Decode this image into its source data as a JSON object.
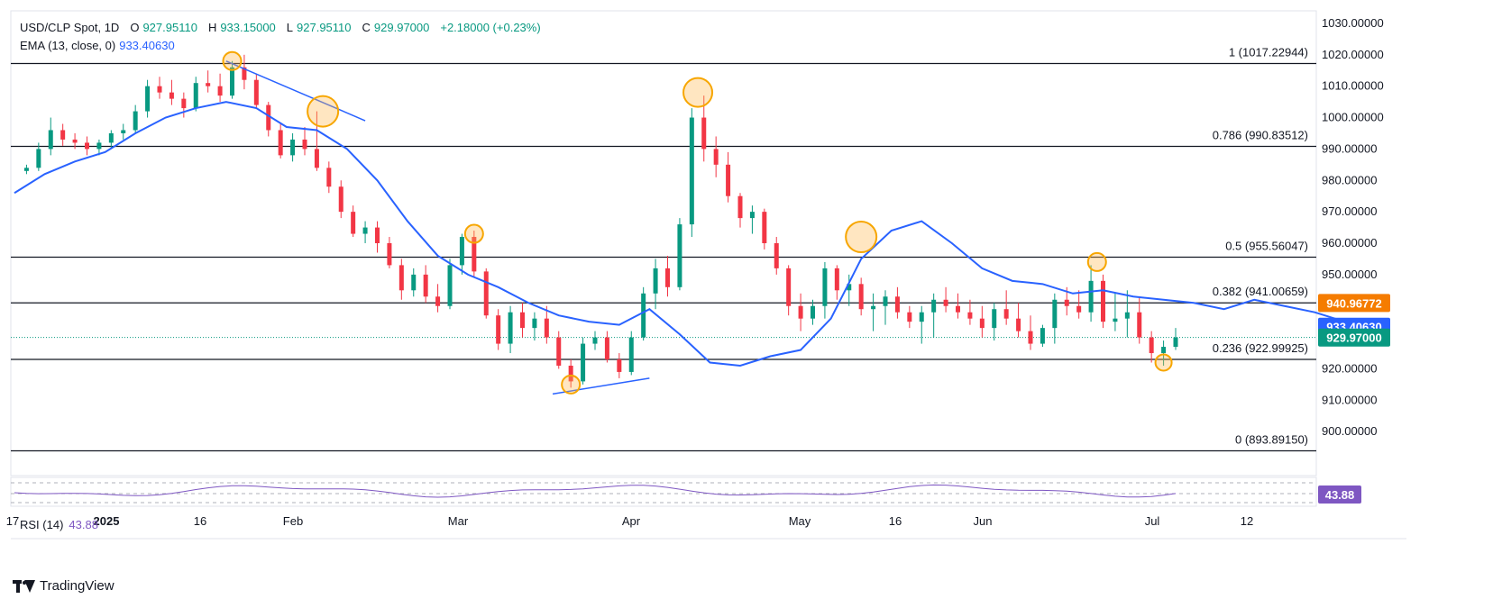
{
  "header": {
    "symbol": "USD/CLP Spot, 1D",
    "open_key": "O",
    "open": "927.95110",
    "high_key": "H",
    "high": "933.15000",
    "low_key": "L",
    "low": "927.95110",
    "close_key": "C",
    "close": "929.97000",
    "change": "+2.18000 (+0.23%)",
    "ema_label": "EMA (13, close, 0)",
    "ema_value": "933.40630"
  },
  "rsi": {
    "label": "RSI (14)",
    "value": "43.88"
  },
  "branding": {
    "name": "TradingView"
  },
  "colors": {
    "up": "#089981",
    "down": "#f23645",
    "ema": "#2962ff",
    "rsi": "#7e57c2",
    "highlight": "#f7a600"
  },
  "chart_data": {
    "type": "candlestick",
    "title": "USD/CLP Spot, 1D",
    "ylim": [
      886,
      1034
    ],
    "y_ticks": [
      "1030.00000",
      "1020.00000",
      "1010.00000",
      "1000.00000",
      "990.00000",
      "980.00000",
      "970.00000",
      "960.00000",
      "950.00000",
      "940.00000",
      "930.00000",
      "920.00000",
      "910.00000",
      "900.00000"
    ],
    "x_ticks": [
      "17",
      "2025",
      "16",
      "Feb",
      "Mar",
      "Apr",
      "May",
      "16",
      "Jun",
      "Jul",
      "12"
    ],
    "fib_levels": [
      {
        "label": "1 (1017.22944)",
        "value": 1017.22944
      },
      {
        "label": "0.786 (990.83512)",
        "value": 990.83512
      },
      {
        "label": "0.5 (955.56047)",
        "value": 955.56047
      },
      {
        "label": "0.382 (941.00659)",
        "value": 941.00659
      },
      {
        "label": "0.236 (922.99925)",
        "value": 922.99925
      },
      {
        "label": "0 (893.89150)",
        "value": 893.8915
      }
    ],
    "price_badges": [
      {
        "text": "940.96772",
        "value": 940.96772,
        "color": "#f57c00"
      },
      {
        "text": "933.40630",
        "value": 933.4063,
        "color": "#2962ff"
      },
      {
        "text": "929.97000",
        "value": 929.97,
        "color": "#089981"
      }
    ],
    "rsi_badge": "43.88",
    "series": [
      {
        "name": "EMA (13, close, 0)",
        "points": [
          [
            0,
            976
          ],
          [
            5,
            982
          ],
          [
            10,
            986
          ],
          [
            15,
            989
          ],
          [
            20,
            995
          ],
          [
            25,
            1000
          ],
          [
            30,
            1003
          ],
          [
            35,
            1005
          ],
          [
            40,
            1003
          ],
          [
            45,
            997
          ],
          [
            50,
            996
          ],
          [
            55,
            990
          ],
          [
            60,
            980
          ],
          [
            65,
            967
          ],
          [
            70,
            956
          ],
          [
            75,
            950
          ],
          [
            80,
            946
          ],
          [
            85,
            941
          ],
          [
            90,
            937
          ],
          [
            95,
            935
          ],
          [
            100,
            934
          ],
          [
            105,
            939
          ],
          [
            110,
            931
          ],
          [
            115,
            922
          ],
          [
            120,
            921
          ],
          [
            125,
            924
          ],
          [
            130,
            926
          ],
          [
            135,
            936
          ],
          [
            140,
            955
          ],
          [
            145,
            964
          ],
          [
            150,
            967
          ],
          [
            155,
            960
          ],
          [
            160,
            952
          ],
          [
            165,
            948
          ],
          [
            170,
            947
          ],
          [
            175,
            944
          ],
          [
            180,
            945
          ],
          [
            185,
            943
          ],
          [
            190,
            942
          ],
          [
            195,
            941
          ],
          [
            200,
            939
          ],
          [
            205,
            942
          ],
          [
            210,
            940
          ],
          [
            215,
            938
          ],
          [
            220,
            935
          ],
          [
            225,
            934
          ]
        ]
      }
    ],
    "candles": [
      [
        2,
        983,
        985,
        982,
        984
      ],
      [
        4,
        984,
        992,
        983,
        990
      ],
      [
        6,
        990,
        1000,
        988,
        996
      ],
      [
        8,
        996,
        998,
        991,
        993
      ],
      [
        10,
        993,
        995,
        990,
        992
      ],
      [
        12,
        992,
        994,
        988,
        990
      ],
      [
        14,
        990,
        993,
        988,
        992
      ],
      [
        16,
        992,
        996,
        990,
        995
      ],
      [
        18,
        995,
        998,
        993,
        996
      ],
      [
        20,
        996,
        1004,
        995,
        1002
      ],
      [
        22,
        1002,
        1012,
        1000,
        1010
      ],
      [
        24,
        1010,
        1013,
        1006,
        1008
      ],
      [
        26,
        1008,
        1012,
        1004,
        1006
      ],
      [
        28,
        1006,
        1008,
        1000,
        1003
      ],
      [
        30,
        1003,
        1013,
        1002,
        1011
      ],
      [
        32,
        1011,
        1015,
        1008,
        1010
      ],
      [
        34,
        1010,
        1014,
        1005,
        1007
      ],
      [
        36,
        1007,
        1018,
        1006,
        1016
      ],
      [
        38,
        1016,
        1020,
        1009,
        1012
      ],
      [
        40,
        1012,
        1014,
        1003,
        1004
      ],
      [
        42,
        1004,
        1005,
        994,
        996
      ],
      [
        44,
        996,
        998,
        987,
        988
      ],
      [
        46,
        988,
        995,
        986,
        993
      ],
      [
        48,
        993,
        997,
        988,
        990
      ],
      [
        50,
        990,
        1002,
        983,
        984
      ],
      [
        52,
        984,
        986,
        976,
        978
      ],
      [
        54,
        978,
        980,
        968,
        970
      ],
      [
        56,
        970,
        972,
        962,
        963
      ],
      [
        58,
        963,
        967,
        960,
        965
      ],
      [
        60,
        965,
        967,
        957,
        960
      ],
      [
        62,
        960,
        962,
        952,
        953
      ],
      [
        64,
        953,
        955,
        942,
        945
      ],
      [
        66,
        945,
        952,
        943,
        950
      ],
      [
        68,
        950,
        953,
        941,
        943
      ],
      [
        70,
        943,
        947,
        938,
        940
      ],
      [
        72,
        940,
        955,
        939,
        953
      ],
      [
        74,
        953,
        963,
        950,
        962
      ],
      [
        76,
        962,
        964,
        949,
        951
      ],
      [
        78,
        951,
        952,
        936,
        937
      ],
      [
        80,
        937,
        939,
        926,
        928
      ],
      [
        82,
        928,
        940,
        925,
        938
      ],
      [
        84,
        938,
        941,
        930,
        933
      ],
      [
        86,
        933,
        938,
        929,
        936
      ],
      [
        88,
        936,
        940,
        928,
        930
      ],
      [
        90,
        930,
        932,
        920,
        921
      ],
      [
        92,
        921,
        923,
        914,
        916
      ],
      [
        94,
        916,
        930,
        915,
        928
      ],
      [
        96,
        928,
        932,
        926,
        930
      ],
      [
        98,
        930,
        932,
        922,
        923
      ],
      [
        100,
        923,
        925,
        917,
        919
      ],
      [
        102,
        919,
        932,
        918,
        930
      ],
      [
        104,
        930,
        946,
        929,
        944
      ],
      [
        106,
        944,
        955,
        939,
        952
      ],
      [
        108,
        952,
        956,
        943,
        946
      ],
      [
        110,
        946,
        968,
        945,
        966
      ],
      [
        112,
        966,
        1003,
        962,
        1000
      ],
      [
        114,
        1000,
        1007,
        986,
        990
      ],
      [
        116,
        990,
        994,
        981,
        985
      ],
      [
        118,
        985,
        989,
        973,
        975
      ],
      [
        120,
        975,
        976,
        965,
        968
      ],
      [
        122,
        968,
        972,
        963,
        970
      ],
      [
        124,
        970,
        971,
        958,
        960
      ],
      [
        126,
        960,
        962,
        950,
        952
      ],
      [
        128,
        952,
        953,
        937,
        940
      ],
      [
        130,
        940,
        944,
        932,
        936
      ],
      [
        132,
        936,
        942,
        934,
        940
      ],
      [
        134,
        940,
        954,
        936,
        952
      ],
      [
        136,
        952,
        953,
        942,
        945
      ],
      [
        138,
        945,
        950,
        940,
        947
      ],
      [
        140,
        947,
        949,
        937,
        939
      ],
      [
        142,
        939,
        944,
        932,
        940
      ],
      [
        144,
        940,
        945,
        934,
        943
      ],
      [
        146,
        943,
        946,
        936,
        938
      ],
      [
        148,
        938,
        940,
        933,
        935
      ],
      [
        150,
        935,
        940,
        928,
        938
      ],
      [
        152,
        938,
        944,
        930,
        942
      ],
      [
        154,
        942,
        946,
        938,
        940
      ],
      [
        156,
        940,
        944,
        936,
        938
      ],
      [
        158,
        938,
        942,
        934,
        936
      ],
      [
        160,
        936,
        940,
        930,
        933
      ],
      [
        162,
        933,
        941,
        929,
        939
      ],
      [
        164,
        939,
        945,
        934,
        936
      ],
      [
        166,
        936,
        941,
        930,
        932
      ],
      [
        168,
        932,
        937,
        926,
        928
      ],
      [
        170,
        928,
        934,
        927,
        933
      ],
      [
        172,
        933,
        944,
        928,
        942
      ],
      [
        174,
        942,
        946,
        937,
        940
      ],
      [
        176,
        940,
        945,
        936,
        938
      ],
      [
        178,
        938,
        953,
        935,
        948
      ],
      [
        180,
        948,
        950,
        933,
        935
      ],
      [
        182,
        935,
        944,
        932,
        936
      ],
      [
        184,
        936,
        945,
        930,
        938
      ],
      [
        186,
        938,
        943,
        928,
        930
      ],
      [
        188,
        930,
        932,
        922,
        925
      ],
      [
        190,
        925,
        929,
        921,
        927
      ],
      [
        192,
        927,
        933,
        926,
        930
      ]
    ]
  }
}
